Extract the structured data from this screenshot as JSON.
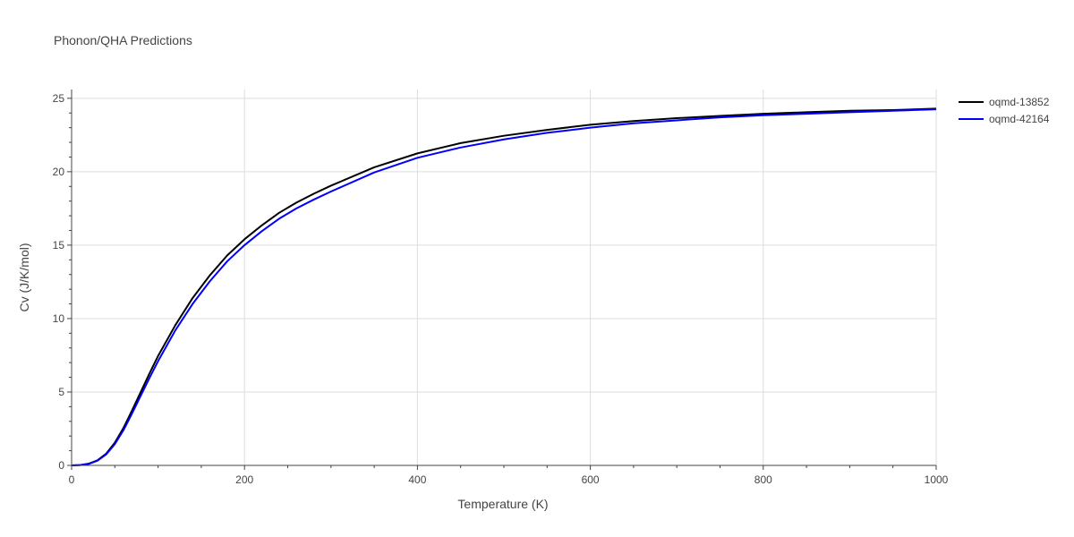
{
  "chart_data": {
    "type": "line",
    "title": "Phonon/QHA Predictions",
    "xlabel": "Temperature (K)",
    "ylabel": "Cv (J/K/mol)",
    "xlim": [
      0,
      1000
    ],
    "ylim": [
      0,
      25.6
    ],
    "xticks": [
      0,
      200,
      400,
      600,
      800,
      1000
    ],
    "yticks": [
      0,
      5,
      10,
      15,
      20,
      25
    ],
    "grid": true,
    "legend_position": "top-right",
    "series": [
      {
        "name": "oqmd-13852",
        "color": "#000000",
        "x": [
          0,
          10,
          20,
          30,
          40,
          50,
          60,
          70,
          80,
          90,
          100,
          120,
          140,
          160,
          180,
          200,
          220,
          240,
          260,
          280,
          300,
          350,
          400,
          450,
          500,
          550,
          600,
          650,
          700,
          750,
          800,
          850,
          900,
          950,
          1000
        ],
        "y": [
          0,
          0.02,
          0.12,
          0.35,
          0.8,
          1.55,
          2.55,
          3.75,
          5.0,
          6.25,
          7.45,
          9.55,
          11.4,
          12.95,
          14.3,
          15.4,
          16.35,
          17.2,
          17.9,
          18.5,
          19.05,
          20.3,
          21.25,
          21.95,
          22.45,
          22.85,
          23.2,
          23.45,
          23.65,
          23.8,
          23.95,
          24.05,
          24.15,
          24.2,
          24.3
        ]
      },
      {
        "name": "oqmd-42164",
        "color": "#0000ff",
        "x": [
          0,
          10,
          20,
          30,
          40,
          50,
          60,
          70,
          80,
          90,
          100,
          120,
          140,
          160,
          180,
          200,
          220,
          240,
          260,
          280,
          300,
          350,
          400,
          450,
          500,
          550,
          600,
          650,
          700,
          750,
          800,
          850,
          900,
          950,
          1000
        ],
        "y": [
          0,
          0.02,
          0.1,
          0.32,
          0.75,
          1.45,
          2.4,
          3.55,
          4.75,
          5.95,
          7.1,
          9.2,
          11.0,
          12.55,
          13.9,
          15.0,
          15.95,
          16.8,
          17.5,
          18.1,
          18.65,
          19.95,
          20.95,
          21.65,
          22.2,
          22.65,
          23.0,
          23.3,
          23.5,
          23.7,
          23.85,
          23.95,
          24.05,
          24.15,
          24.25
        ]
      }
    ]
  }
}
